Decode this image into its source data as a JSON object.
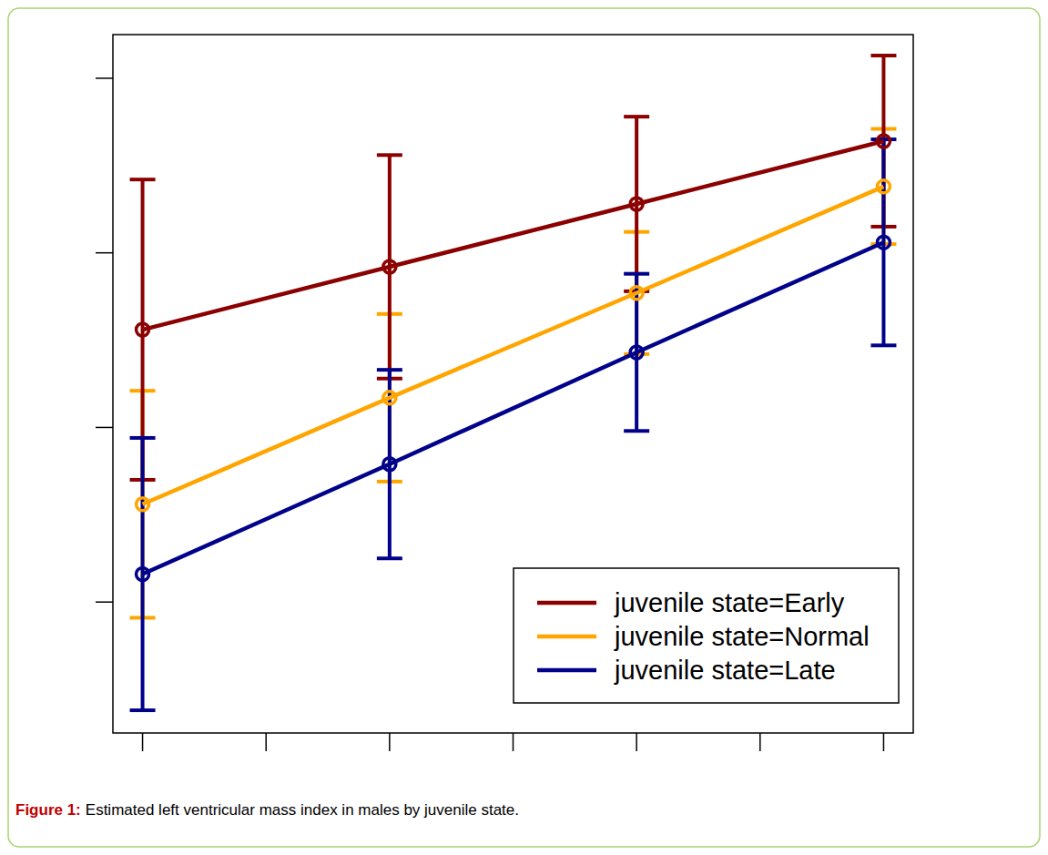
{
  "chart_data": {
    "type": "line",
    "caption_label": "Figure 1:",
    "caption": "Estimated left ventricular mass index in males by juvenile state.",
    "x": [
      1,
      3,
      5,
      7
    ],
    "xlim": [
      0.76,
      7.24
    ],
    "xticks": [
      1,
      2,
      3,
      4,
      5,
      6,
      7
    ],
    "ylim": [
      0.25,
      4.25
    ],
    "yticks": [
      1,
      2,
      3,
      4
    ],
    "tick_labels": false,
    "legend": "bottomright",
    "marker": "circle",
    "series": [
      {
        "name": "juvenile state=Early",
        "color": "#8b0000",
        "values": [
          2.56,
          2.92,
          3.28,
          3.64
        ],
        "errors": [
          0.86,
          0.64,
          0.5,
          0.49
        ]
      },
      {
        "name": "juvenile state=Normal",
        "color": "#ffa500",
        "values": [
          1.56,
          2.17,
          2.77,
          3.38
        ],
        "errors": [
          0.65,
          0.48,
          0.35,
          0.33
        ]
      },
      {
        "name": "juvenile state=Late",
        "color": "#00008b",
        "values": [
          1.16,
          1.79,
          2.43,
          3.06
        ],
        "errors": [
          0.78,
          0.54,
          0.45,
          0.59
        ]
      }
    ]
  }
}
